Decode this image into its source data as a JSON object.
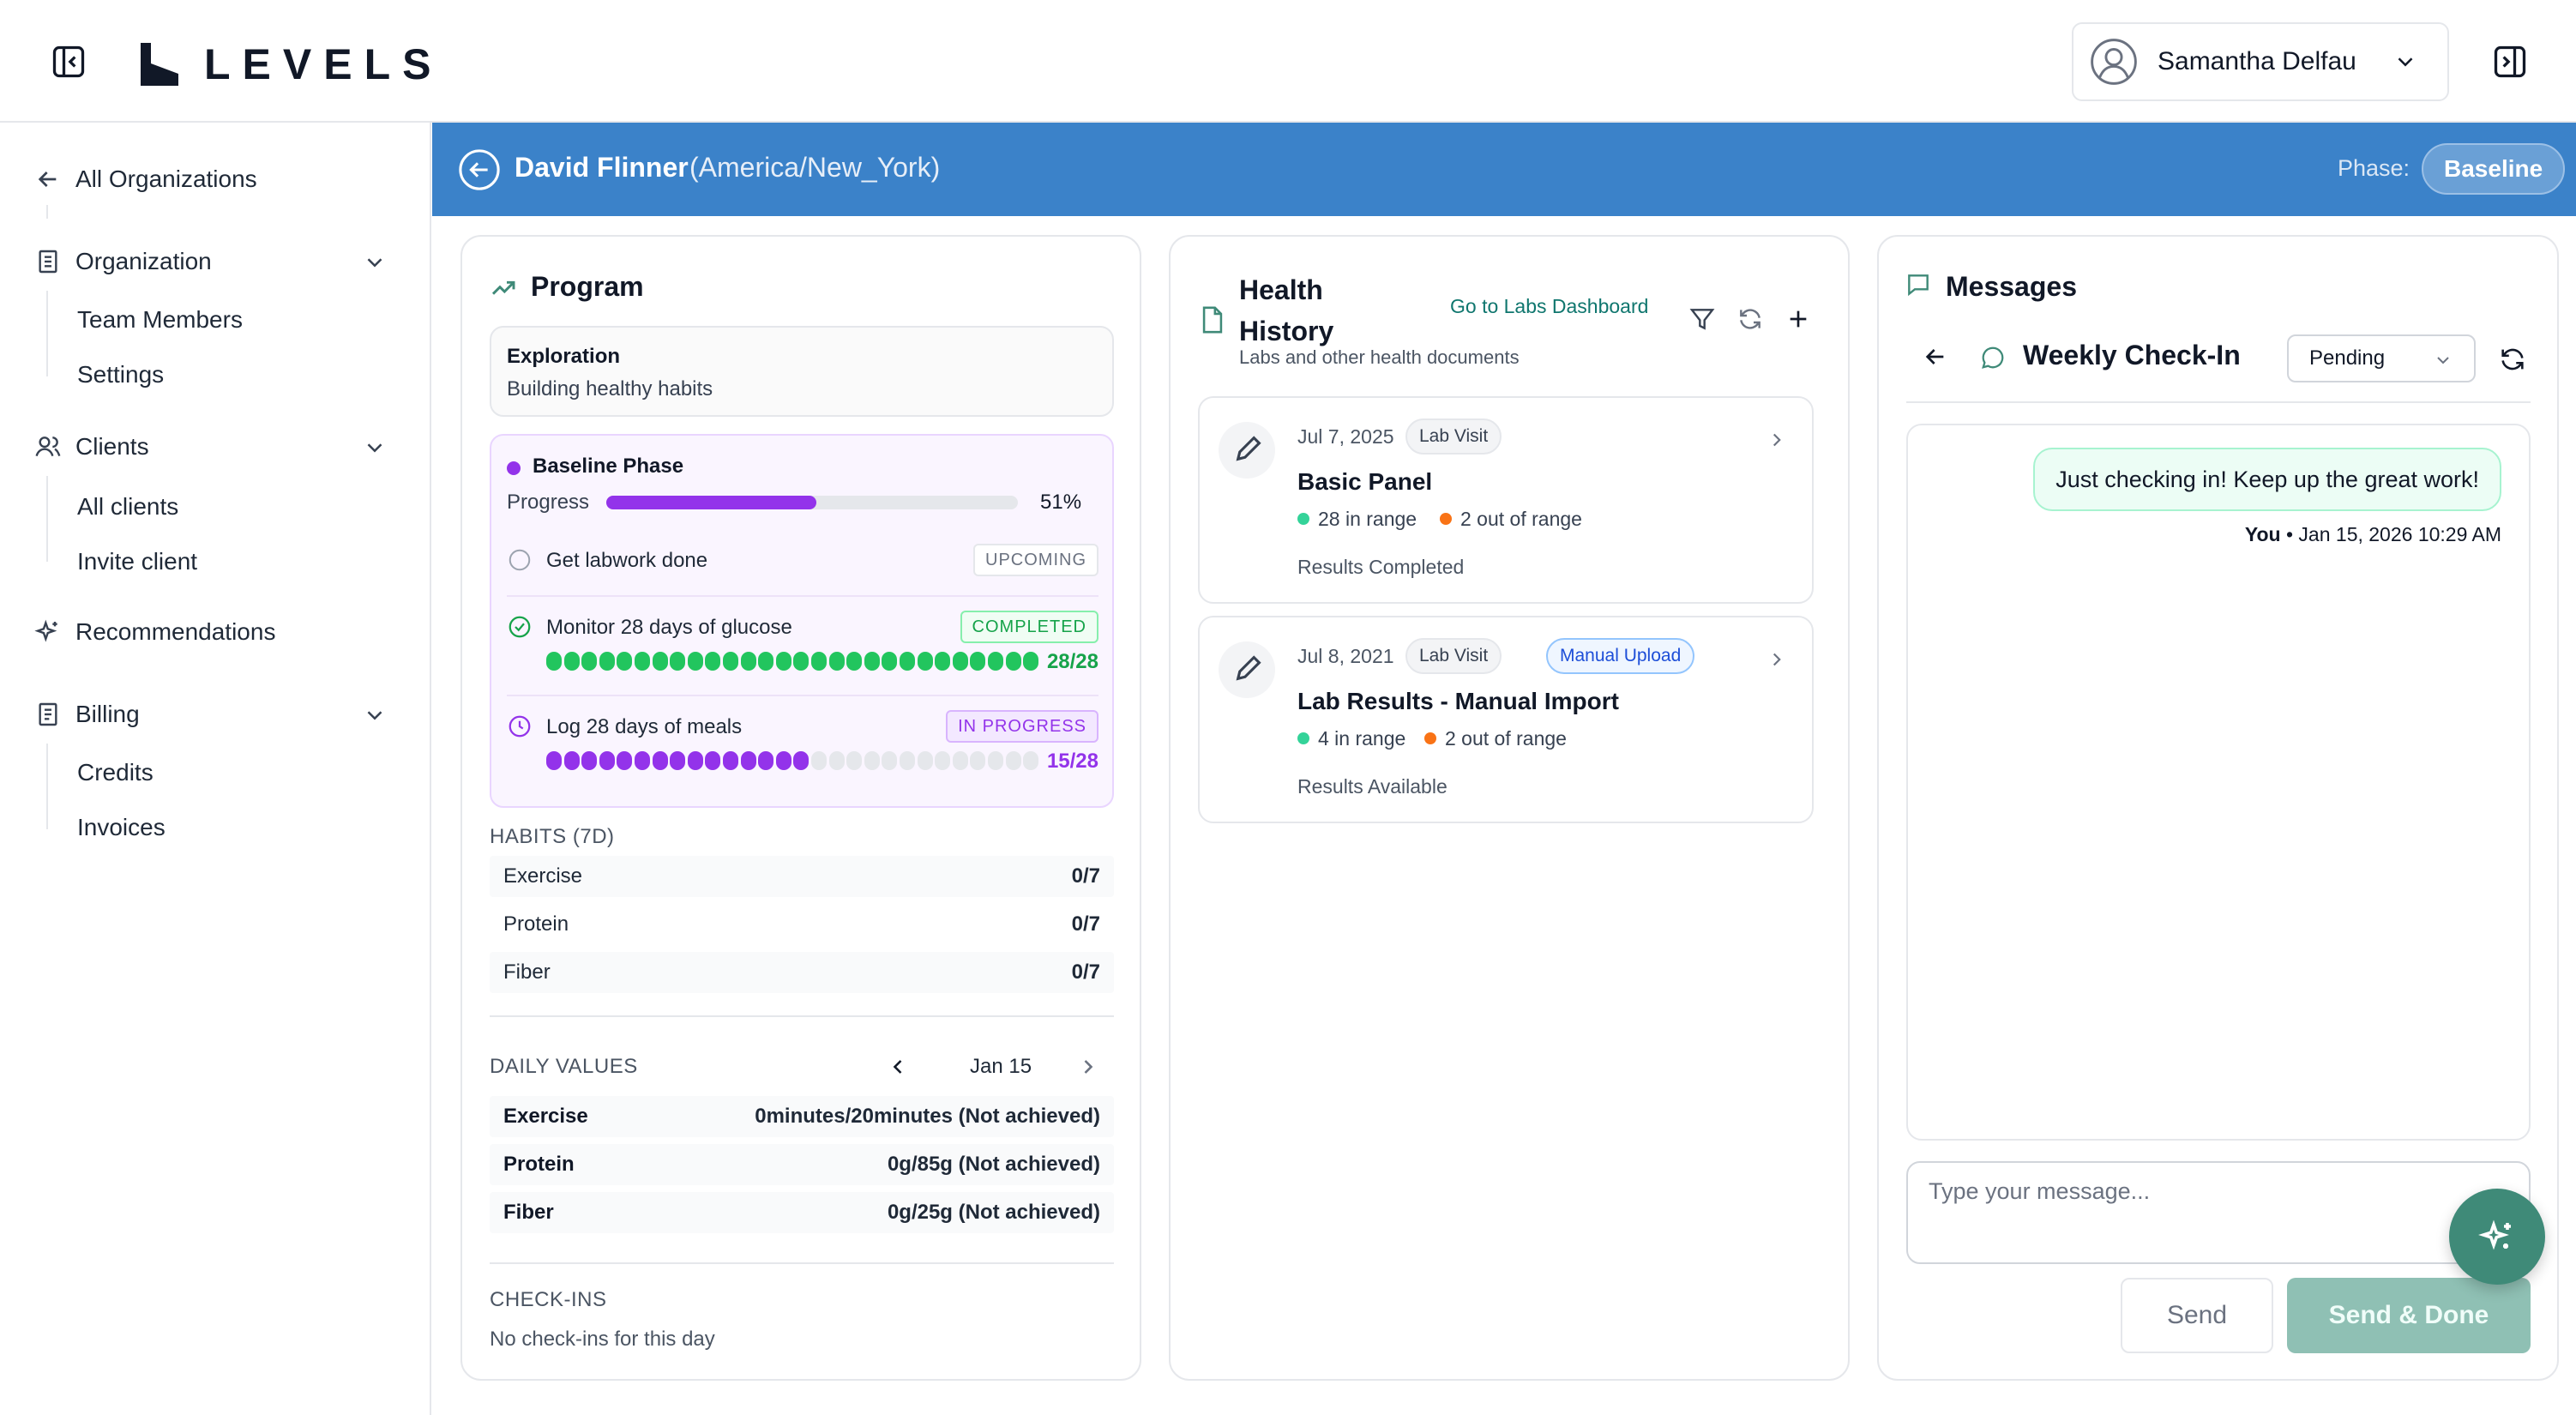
{
  "app": {
    "logo_text": "LEVELS"
  },
  "user": {
    "name": "Samantha Delfau"
  },
  "sidebar": {
    "all_orgs": "All Organizations",
    "organization": {
      "label": "Organization",
      "items": [
        "Team Members",
        "Settings"
      ]
    },
    "clients": {
      "label": "Clients",
      "items": [
        "All clients",
        "Invite client"
      ]
    },
    "recommendations": "Recommendations",
    "billing": {
      "label": "Billing",
      "items": [
        "Credits",
        "Invoices"
      ]
    }
  },
  "client": {
    "name": "David Flinner",
    "timezone": "(America/New_York)",
    "phase_label": "Phase:",
    "phase": "Baseline"
  },
  "program": {
    "title": "Program",
    "exploration": {
      "title": "Exploration",
      "subtitle": "Building healthy habits"
    },
    "phase": {
      "title": "Baseline Phase",
      "progress_label": "Progress",
      "progress_percent": 51,
      "progress_text": "51%",
      "tasks": [
        {
          "label": "Get labwork done",
          "status": "UPCOMING"
        },
        {
          "label": "Monitor 28 days of glucose",
          "status": "COMPLETED",
          "done": 28,
          "total": 28,
          "count": "28/28",
          "color": "#22c55e"
        },
        {
          "label": "Log 28 days of meals",
          "status": "IN PROGRESS",
          "done": 15,
          "total": 28,
          "count": "15/28",
          "color": "#9333ea"
        }
      ]
    },
    "habits": {
      "label": "HABITS (7D)",
      "rows": [
        {
          "name": "Exercise",
          "value": "0/7"
        },
        {
          "name": "Protein",
          "value": "0/7"
        },
        {
          "name": "Fiber",
          "value": "0/7"
        }
      ]
    },
    "daily_values": {
      "label": "DAILY VALUES",
      "date": "Jan 15",
      "rows": [
        {
          "name": "Exercise",
          "value": "0minutes/20minutes (Not achieved)"
        },
        {
          "name": "Protein",
          "value": "0g/85g (Not achieved)"
        },
        {
          "name": "Fiber",
          "value": "0g/25g (Not achieved)"
        }
      ]
    },
    "checkins": {
      "label": "CHECK-INS",
      "empty": "No check-ins for this day"
    }
  },
  "health": {
    "title": "Health History",
    "subtitle": "Labs and other health documents",
    "link": "Go to Labs Dashboard",
    "items": [
      {
        "date": "Jul 7, 2025",
        "type": "Lab Visit",
        "name": "Basic Panel",
        "in_range": "28 in range",
        "out_range": "2 out of range",
        "status": "Results Completed"
      },
      {
        "date": "Jul 8, 2021",
        "type": "Lab Visit",
        "tag": "Manual Upload",
        "name": "Lab Results - Manual Import",
        "in_range": "4 in range",
        "out_range": "2 out of range",
        "status": "Results Available"
      }
    ]
  },
  "messages": {
    "title": "Messages",
    "thread_title": "Weekly Check-In",
    "status": "Pending",
    "bubble": "Just checking in! Keep up the great work!",
    "sender": "You",
    "timestamp": "• Jan 15, 2026 10:29 AM",
    "placeholder": "Type your message...",
    "send": "Send",
    "send_done": "Send & Done"
  },
  "colors": {
    "brand_blue": "#3b82c9",
    "phase_purple": "#9333ea",
    "complete_green": "#22c55e",
    "in_range": "#34d399",
    "out_range": "#f97316",
    "fab": "#3f8a78"
  },
  "icons": [
    "sidebar-collapse-icon",
    "levels-logo-icon",
    "user-avatar-icon",
    "chevron-down-icon",
    "sidebar-expand-icon",
    "arrow-left-icon",
    "building-icon",
    "users-icon",
    "sparkle-icon",
    "receipt-icon",
    "trend-up-icon",
    "circle-icon",
    "check-circle-icon",
    "clock-icon",
    "document-icon",
    "filter-icon",
    "refresh-icon",
    "plus-icon",
    "pencil-icon",
    "chevron-right-icon",
    "message-icon",
    "chat-bubble-icon"
  ]
}
